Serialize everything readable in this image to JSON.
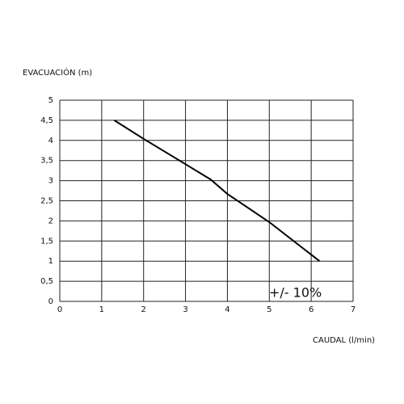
{
  "chart_data": {
    "type": "line",
    "y_label": "EVACUACIÓN (m)",
    "x_label": "CAUDAL (l/min)",
    "annotation": "+/- 10%",
    "x": [
      1.3,
      2,
      3,
      3.6,
      4,
      5,
      6.2
    ],
    "values": [
      4.5,
      4.04,
      3.41,
      3.03,
      2.67,
      1.97,
      1.0
    ],
    "color": "#000000",
    "xlim": [
      0,
      7
    ],
    "xticks": [
      0,
      1,
      2,
      3,
      4,
      5,
      6,
      7
    ],
    "ylim": [
      0,
      5
    ],
    "yticks": [
      0,
      {
        "value": 0.5,
        "label": "0,5"
      },
      1,
      {
        "value": 1.5,
        "label": "1,5"
      },
      2,
      {
        "value": 2.5,
        "label": "2,5"
      },
      3,
      {
        "value": 3.5,
        "label": "3,5"
      },
      4,
      {
        "value": 4.5,
        "label": "4,5"
      },
      5
    ],
    "grid": true
  }
}
